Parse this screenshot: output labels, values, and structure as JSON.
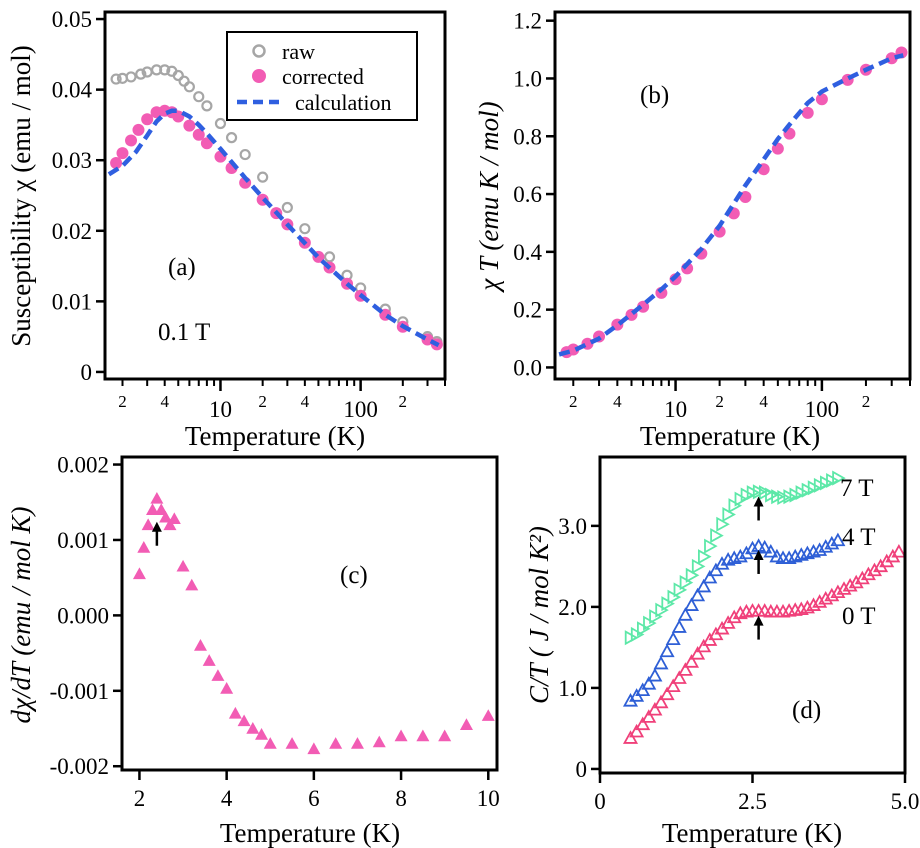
{
  "colors": {
    "raw": "#a6a6a6",
    "corrected": "#f25cb4",
    "calculation": "#2f5fe0",
    "field7": "#5de8a8",
    "field4": "#2e5fd6",
    "field0": "#f0407a"
  },
  "chart_data": [
    {
      "type": "scatter",
      "panel_label": "(a)",
      "annotation": "0.1 T",
      "xlabel": "Temperature (K)",
      "ylabel": "Susceptibility χ (emu / mol)",
      "xscale": "log",
      "xlim": [
        1.5,
        400
      ],
      "ylim": [
        -0.001,
        0.051
      ],
      "xticks_major": [
        "10",
        "100"
      ],
      "xticks_minor": [
        "2",
        "4",
        "2",
        "4",
        "2"
      ],
      "yticks": [
        "0",
        "0.01",
        "0.02",
        "0.03",
        "0.04",
        "0.05"
      ],
      "legend": [
        "raw",
        "corrected",
        "calculation"
      ],
      "legend_position": "top-right",
      "series": [
        {
          "name": "raw",
          "marker": "open-circle",
          "x": [
            1.8,
            2.0,
            2.3,
            2.7,
            3.0,
            3.5,
            4.0,
            4.5,
            5.0,
            5.5,
            6.0,
            7.0,
            8.0,
            10,
            12,
            15,
            20,
            30,
            40,
            60,
            80,
            100,
            150,
            200,
            300,
            350
          ],
          "y": [
            0.0415,
            0.0416,
            0.0418,
            0.0422,
            0.0425,
            0.0428,
            0.0428,
            0.0426,
            0.042,
            0.0412,
            0.0404,
            0.039,
            0.0377,
            0.0352,
            0.0332,
            0.0308,
            0.0276,
            0.0233,
            0.0203,
            0.0163,
            0.0137,
            0.0119,
            0.0089,
            0.0071,
            0.005,
            0.0043
          ]
        },
        {
          "name": "corrected",
          "marker": "filled-circle",
          "x": [
            1.8,
            2.0,
            2.3,
            2.6,
            3.0,
            3.5,
            4.0,
            4.5,
            5.0,
            6.0,
            7.0,
            8.0,
            10,
            12,
            15,
            20,
            25,
            30,
            40,
            50,
            60,
            80,
            100,
            150,
            200,
            300,
            350
          ],
          "y": [
            0.0296,
            0.031,
            0.0328,
            0.0343,
            0.0358,
            0.0368,
            0.037,
            0.0368,
            0.0362,
            0.0349,
            0.0336,
            0.0324,
            0.0305,
            0.0289,
            0.0268,
            0.0244,
            0.0225,
            0.0209,
            0.0183,
            0.0163,
            0.0148,
            0.0125,
            0.0108,
            0.0081,
            0.0064,
            0.0046,
            0.0039
          ]
        },
        {
          "name": "calculation",
          "marker": "dashed-line",
          "x": [
            1.6,
            2.0,
            2.5,
            3.0,
            3.5,
            4.0,
            4.5,
            5.0,
            6.0,
            7.0,
            8.0,
            10,
            15,
            20,
            30,
            50,
            80,
            100,
            150,
            200,
            300,
            360
          ],
          "y": [
            0.028,
            0.0292,
            0.0312,
            0.0335,
            0.0355,
            0.0366,
            0.037,
            0.037,
            0.0362,
            0.035,
            0.0338,
            0.0316,
            0.0275,
            0.0247,
            0.0209,
            0.0162,
            0.0125,
            0.0109,
            0.0081,
            0.0065,
            0.0046,
            0.0038
          ]
        }
      ]
    },
    {
      "type": "scatter",
      "panel_label": "(b)",
      "xlabel": "Temperature (K)",
      "ylabel": "χ T (emu K / mol)",
      "xscale": "log",
      "xlim": [
        1.5,
        400
      ],
      "ylim": [
        -0.04,
        1.23
      ],
      "xticks_major": [
        "10",
        "100"
      ],
      "xticks_minor": [
        "2",
        "4",
        "2",
        "4",
        "2"
      ],
      "yticks": [
        "0.0",
        "0.2",
        "0.4",
        "0.6",
        "0.8",
        "1.0",
        "1.2"
      ],
      "series": [
        {
          "name": "corrected",
          "marker": "filled-circle",
          "x": [
            1.8,
            2.0,
            2.5,
            3.0,
            4.0,
            5.0,
            6.0,
            8.0,
            10,
            12,
            15,
            20,
            25,
            30,
            40,
            50,
            60,
            80,
            100,
            150,
            200,
            300,
            350
          ],
          "y": [
            0.053,
            0.062,
            0.082,
            0.107,
            0.148,
            0.182,
            0.21,
            0.258,
            0.305,
            0.343,
            0.394,
            0.47,
            0.533,
            0.59,
            0.686,
            0.757,
            0.809,
            0.881,
            0.928,
            0.995,
            1.03,
            1.07,
            1.09
          ]
        },
        {
          "name": "calculation",
          "marker": "dashed-line",
          "x": [
            1.6,
            2.0,
            3.0,
            4.0,
            5.0,
            6.0,
            8.0,
            10,
            15,
            20,
            30,
            40,
            50,
            60,
            80,
            100,
            150,
            200,
            300,
            360
          ],
          "y": [
            0.045,
            0.058,
            0.1,
            0.146,
            0.185,
            0.217,
            0.27,
            0.315,
            0.41,
            0.49,
            0.63,
            0.72,
            0.79,
            0.84,
            0.915,
            0.955,
            1.0,
            1.03,
            1.07,
            1.08
          ]
        }
      ]
    },
    {
      "type": "scatter",
      "panel_label": "(c)",
      "xlabel": "Temperature (K)",
      "ylabel": "dχ/dT (emu / mol K)",
      "xlim": [
        1.6,
        10.2
      ],
      "ylim": [
        -0.00205,
        0.0021
      ],
      "xticks": [
        "2",
        "4",
        "6",
        "8",
        "10"
      ],
      "yticks": [
        "-0.002",
        "-0.001",
        "0.000",
        "0.001",
        "0.002"
      ],
      "arrow_at": {
        "x": 2.4,
        "y": 0.00095
      },
      "series": [
        {
          "name": "dchi/dT",
          "marker": "filled-triangle",
          "x": [
            2.0,
            2.1,
            2.2,
            2.3,
            2.4,
            2.5,
            2.6,
            2.7,
            2.8,
            3.0,
            3.2,
            3.4,
            3.6,
            3.8,
            4.0,
            4.2,
            4.4,
            4.6,
            4.8,
            5.0,
            5.5,
            6.0,
            6.5,
            7.0,
            7.5,
            8.0,
            8.5,
            9.0,
            9.5,
            10.0
          ],
          "y": [
            0.00055,
            0.0009,
            0.0012,
            0.0014,
            0.00155,
            0.0014,
            0.0013,
            0.0012,
            0.00128,
            0.00065,
            0.0004,
            -0.0004,
            -0.0006,
            -0.0008,
            -0.00097,
            -0.0013,
            -0.0014,
            -0.0015,
            -0.00158,
            -0.0017,
            -0.0017,
            -0.00177,
            -0.0017,
            -0.0017,
            -0.00168,
            -0.0016,
            -0.0016,
            -0.0016,
            -0.00145,
            -0.00133
          ]
        }
      ]
    },
    {
      "type": "scatter",
      "panel_label": "(d)",
      "xlabel": "Temperature (K)",
      "ylabel": "C/T ( J / mol K²)",
      "xlim": [
        0,
        5.0
      ],
      "ylim": [
        -0.05,
        3.85
      ],
      "xticks": [
        "0",
        "2.5",
        "5.0"
      ],
      "yticks": [
        "0",
        "1.0",
        "2.0",
        "3.0"
      ],
      "field_labels": [
        "7 T",
        "4 T",
        "0 T"
      ],
      "arrows_at_x": 2.6,
      "series": [
        {
          "name": "7 T",
          "marker": "open-triangle-right",
          "x": [
            0.5,
            0.6,
            0.7,
            0.8,
            0.9,
            1.0,
            1.1,
            1.2,
            1.3,
            1.4,
            1.5,
            1.6,
            1.7,
            1.8,
            1.9,
            2.0,
            2.1,
            2.2,
            2.3,
            2.4,
            2.5,
            2.6,
            2.7,
            2.8,
            2.9,
            3.0,
            3.1,
            3.2,
            3.3,
            3.4,
            3.5,
            3.6,
            3.7,
            3.8,
            3.9
          ],
          "y": [
            1.62,
            1.66,
            1.73,
            1.8,
            1.88,
            1.96,
            2.04,
            2.12,
            2.21,
            2.3,
            2.39,
            2.5,
            2.62,
            2.75,
            2.88,
            3.02,
            3.14,
            3.25,
            3.33,
            3.38,
            3.41,
            3.42,
            3.41,
            3.38,
            3.36,
            3.35,
            3.36,
            3.38,
            3.41,
            3.44,
            3.47,
            3.5,
            3.53,
            3.56,
            3.59
          ]
        },
        {
          "name": "4 T",
          "marker": "open-triangle-up",
          "x": [
            0.5,
            0.6,
            0.7,
            0.8,
            0.9,
            1.0,
            1.1,
            1.2,
            1.3,
            1.4,
            1.5,
            1.6,
            1.7,
            1.8,
            1.9,
            2.0,
            2.1,
            2.2,
            2.3,
            2.4,
            2.5,
            2.6,
            2.7,
            2.8,
            2.9,
            3.0,
            3.1,
            3.2,
            3.3,
            3.4,
            3.5,
            3.6,
            3.7,
            3.8,
            3.9
          ],
          "y": [
            0.84,
            0.9,
            0.97,
            1.05,
            1.15,
            1.3,
            1.45,
            1.6,
            1.75,
            1.9,
            2.02,
            2.14,
            2.25,
            2.36,
            2.45,
            2.53,
            2.58,
            2.6,
            2.62,
            2.66,
            2.72,
            2.75,
            2.73,
            2.68,
            2.62,
            2.6,
            2.6,
            2.62,
            2.64,
            2.66,
            2.68,
            2.7,
            2.74,
            2.78,
            2.82
          ]
        },
        {
          "name": "0 T",
          "marker": "open-triangle-up",
          "x": [
            0.5,
            0.6,
            0.7,
            0.8,
            0.9,
            1.0,
            1.1,
            1.2,
            1.3,
            1.4,
            1.5,
            1.6,
            1.7,
            1.8,
            1.9,
            2.0,
            2.1,
            2.2,
            2.3,
            2.4,
            2.5,
            2.6,
            2.7,
            2.8,
            2.9,
            3.0,
            3.1,
            3.2,
            3.3,
            3.4,
            3.5,
            3.6,
            3.7,
            3.8,
            3.9,
            4.0,
            4.1,
            4.2,
            4.3,
            4.4,
            4.5,
            4.6,
            4.7,
            4.8,
            4.9
          ],
          "y": [
            0.38,
            0.46,
            0.55,
            0.64,
            0.73,
            0.82,
            0.92,
            1.02,
            1.12,
            1.22,
            1.32,
            1.42,
            1.51,
            1.59,
            1.66,
            1.73,
            1.8,
            1.87,
            1.92,
            1.94,
            1.95,
            1.95,
            1.95,
            1.94,
            1.94,
            1.94,
            1.95,
            1.96,
            1.97,
            1.99,
            2.02,
            2.06,
            2.1,
            2.14,
            2.18,
            2.22,
            2.26,
            2.3,
            2.35,
            2.4,
            2.45,
            2.5,
            2.56,
            2.62,
            2.68
          ]
        }
      ]
    }
  ]
}
